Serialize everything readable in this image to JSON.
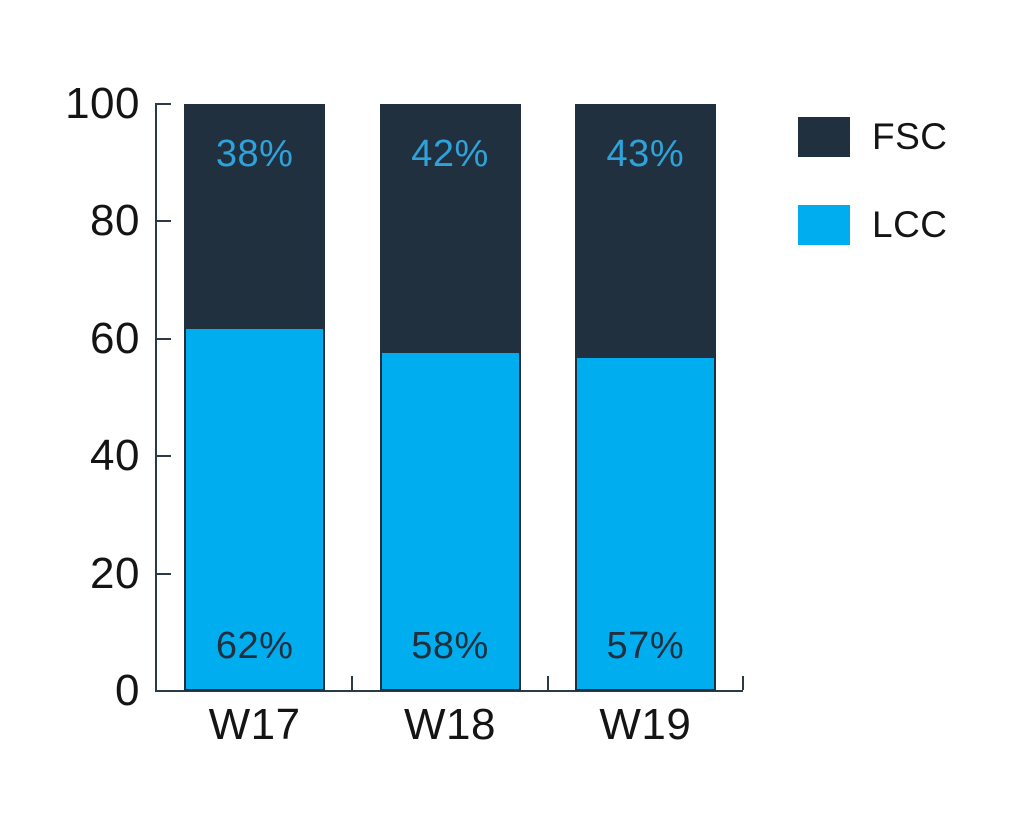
{
  "chart_data": {
    "type": "bar",
    "subtype": "stacked",
    "title": "",
    "categories": [
      "W17",
      "W18",
      "W19"
    ],
    "series": [
      {
        "name": "LCC",
        "values": [
          62,
          58,
          57
        ],
        "labels": [
          "62%",
          "58%",
          "57%"
        ],
        "color": "#00AEEF",
        "label_color": "#21303F"
      },
      {
        "name": "FSC",
        "values": [
          38,
          42,
          43
        ],
        "labels": [
          "38%",
          "42%",
          "43%"
        ],
        "color": "#21303F",
        "label_color": "#2EA2DB"
      }
    ],
    "stack_order_bottom_to_top": [
      "LCC",
      "FSC"
    ],
    "y_axis": {
      "min": 0,
      "max": 100,
      "tick_values": [
        0,
        20,
        40,
        60,
        80,
        100
      ],
      "tick_labels": [
        "0",
        "20",
        "40",
        "60",
        "80",
        "100"
      ]
    },
    "x_axis": {
      "tick_style": "between-categories-upward"
    },
    "grid": false,
    "legend": {
      "position": "top-right",
      "entries": [
        {
          "label": "FSC",
          "color": "#21303F"
        },
        {
          "label": "LCC",
          "color": "#00AEEF"
        }
      ]
    },
    "colors": {
      "axis": "#2B3A4A",
      "text": "#141414",
      "background": "#FFFFFF"
    }
  }
}
